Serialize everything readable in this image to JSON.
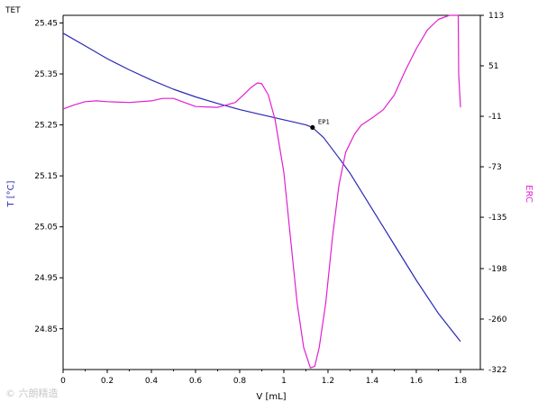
{
  "window": {
    "corner_title": "TET"
  },
  "watermark": "© 六朗精造",
  "chart_data": {
    "type": "line",
    "title": "",
    "xlabel": "V [mL]",
    "xlim": [
      0,
      1.89
    ],
    "x_ticks": [
      0,
      0.2,
      0.4,
      0.6,
      0.8,
      1,
      1.2,
      1.4,
      1.6,
      1.8
    ],
    "x_tick_labels": [
      "0",
      "0.2",
      "0.4",
      "0.6",
      "0.8",
      "1",
      "1.2",
      "1.4",
      "1.6",
      "1.8"
    ],
    "y_left": {
      "label": "T [°C]",
      "color": "#2a2ab5",
      "lim": [
        24.77,
        25.465
      ],
      "ticks": [
        25.45,
        25.35,
        25.25,
        25.15,
        25.05,
        24.95,
        24.85
      ],
      "tick_labels": [
        "25.45",
        "25.35",
        "25.25",
        "25.15",
        "25.05",
        "24.95",
        "24.85"
      ]
    },
    "y_right": {
      "label": "ERC",
      "color": "#e020d0",
      "lim": [
        -322,
        113
      ],
      "ticks": [
        113,
        51,
        -11,
        -73,
        -135,
        -198,
        -260,
        -322
      ],
      "tick_labels": [
        "113",
        "51",
        "-11",
        "-73",
        "-135",
        "-198",
        "-260",
        "-322"
      ]
    },
    "grid": false,
    "series": [
      {
        "axis": "left",
        "color": "#2a2ab5",
        "points": [
          [
            0,
            25.43
          ],
          [
            0.1,
            25.405
          ],
          [
            0.2,
            25.38
          ],
          [
            0.3,
            25.358
          ],
          [
            0.4,
            25.338
          ],
          [
            0.5,
            25.32
          ],
          [
            0.6,
            25.305
          ],
          [
            0.7,
            25.292
          ],
          [
            0.8,
            25.28
          ],
          [
            0.9,
            25.27
          ],
          [
            1.0,
            25.26
          ],
          [
            1.05,
            25.255
          ],
          [
            1.1,
            25.25
          ],
          [
            1.13,
            25.245
          ],
          [
            1.18,
            25.225
          ],
          [
            1.25,
            25.185
          ],
          [
            1.3,
            25.155
          ],
          [
            1.35,
            25.12
          ],
          [
            1.4,
            25.085
          ],
          [
            1.5,
            25.015
          ],
          [
            1.6,
            24.945
          ],
          [
            1.7,
            24.88
          ],
          [
            1.8,
            24.825
          ]
        ]
      },
      {
        "axis": "right",
        "color": "#e020d0",
        "points": [
          [
            0,
            -2
          ],
          [
            0.05,
            3
          ],
          [
            0.1,
            7
          ],
          [
            0.15,
            8
          ],
          [
            0.2,
            7
          ],
          [
            0.3,
            6
          ],
          [
            0.4,
            8
          ],
          [
            0.45,
            11
          ],
          [
            0.5,
            11
          ],
          [
            0.55,
            6
          ],
          [
            0.6,
            1
          ],
          [
            0.7,
            0
          ],
          [
            0.78,
            6
          ],
          [
            0.82,
            16
          ],
          [
            0.85,
            24
          ],
          [
            0.88,
            30
          ],
          [
            0.9,
            29
          ],
          [
            0.93,
            15
          ],
          [
            0.96,
            -15
          ],
          [
            1.0,
            -80
          ],
          [
            1.03,
            -160
          ],
          [
            1.06,
            -240
          ],
          [
            1.09,
            -295
          ],
          [
            1.12,
            -320
          ],
          [
            1.14,
            -318
          ],
          [
            1.16,
            -295
          ],
          [
            1.19,
            -240
          ],
          [
            1.22,
            -160
          ],
          [
            1.25,
            -95
          ],
          [
            1.28,
            -55
          ],
          [
            1.32,
            -33
          ],
          [
            1.35,
            -22
          ],
          [
            1.4,
            -13
          ],
          [
            1.45,
            -3
          ],
          [
            1.5,
            15
          ],
          [
            1.55,
            45
          ],
          [
            1.6,
            72
          ],
          [
            1.65,
            95
          ],
          [
            1.7,
            108
          ],
          [
            1.75,
            113
          ],
          [
            1.79,
            113
          ],
          [
            1.792,
            40
          ],
          [
            1.8,
            0
          ]
        ]
      }
    ],
    "annotations": [
      {
        "text": "EP1",
        "x": 1.13,
        "y": 25.245,
        "axis": "left"
      }
    ]
  }
}
